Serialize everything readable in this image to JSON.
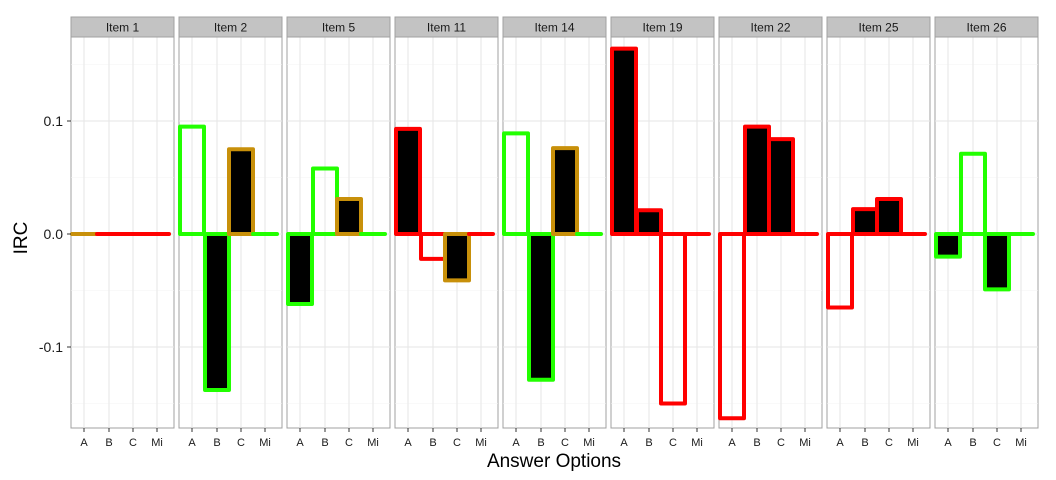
{
  "chart_data": {
    "type": "bar",
    "xlabel": "Answer Options",
    "ylabel": "IRC",
    "ylim": [
      -0.17,
      0.19
    ],
    "yticks": [
      0.1,
      0.0,
      -0.1
    ],
    "ytick_labels": [
      "0.1",
      "0.0",
      "-0.1"
    ],
    "categories": [
      "A",
      "B",
      "C",
      "Mi"
    ],
    "grid": "on",
    "colors": {
      "red": "#ff0000",
      "green": "#22ff00",
      "gold": "#c8900a",
      "fill_correct": "#000000"
    },
    "panels": [
      {
        "title": "Item 1",
        "values": [
          0.0,
          0.0,
          0.0,
          0.0
        ],
        "outline": [
          "gold",
          "red",
          "red",
          "red"
        ],
        "filled": [
          false,
          false,
          false,
          false
        ]
      },
      {
        "title": "Item 2",
        "values": [
          0.095,
          -0.138,
          0.075,
          0.0
        ],
        "outline": [
          "green",
          "green",
          "gold",
          "green"
        ],
        "filled": [
          false,
          true,
          true,
          false
        ]
      },
      {
        "title": "Item 5",
        "values": [
          -0.062,
          0.058,
          0.031,
          0.0
        ],
        "outline": [
          "green",
          "green",
          "gold",
          "green"
        ],
        "filled": [
          true,
          false,
          true,
          false
        ]
      },
      {
        "title": "Item 11",
        "values": [
          0.093,
          -0.022,
          -0.041,
          0.0
        ],
        "outline": [
          "red",
          "red",
          "gold",
          "red"
        ],
        "filled": [
          true,
          false,
          true,
          false
        ]
      },
      {
        "title": "Item 14",
        "values": [
          0.089,
          -0.129,
          0.076,
          0.0
        ],
        "outline": [
          "green",
          "green",
          "gold",
          "green"
        ],
        "filled": [
          false,
          true,
          true,
          false
        ]
      },
      {
        "title": "Item 19",
        "values": [
          0.164,
          0.021,
          -0.15,
          0.0
        ],
        "outline": [
          "red",
          "red",
          "red",
          "red"
        ],
        "filled": [
          true,
          true,
          false,
          false
        ]
      },
      {
        "title": "Item 22",
        "values": [
          -0.163,
          0.095,
          0.084,
          0.0
        ],
        "outline": [
          "red",
          "red",
          "red",
          "red"
        ],
        "filled": [
          false,
          true,
          true,
          false
        ]
      },
      {
        "title": "Item 25",
        "values": [
          -0.065,
          0.022,
          0.031,
          0.0
        ],
        "outline": [
          "red",
          "red",
          "red",
          "red"
        ],
        "filled": [
          false,
          true,
          true,
          false
        ]
      },
      {
        "title": "Item 26",
        "values": [
          -0.02,
          0.071,
          -0.049,
          0.0
        ],
        "outline": [
          "green",
          "green",
          "green",
          "green"
        ],
        "filled": [
          true,
          false,
          true,
          false
        ]
      }
    ]
  }
}
